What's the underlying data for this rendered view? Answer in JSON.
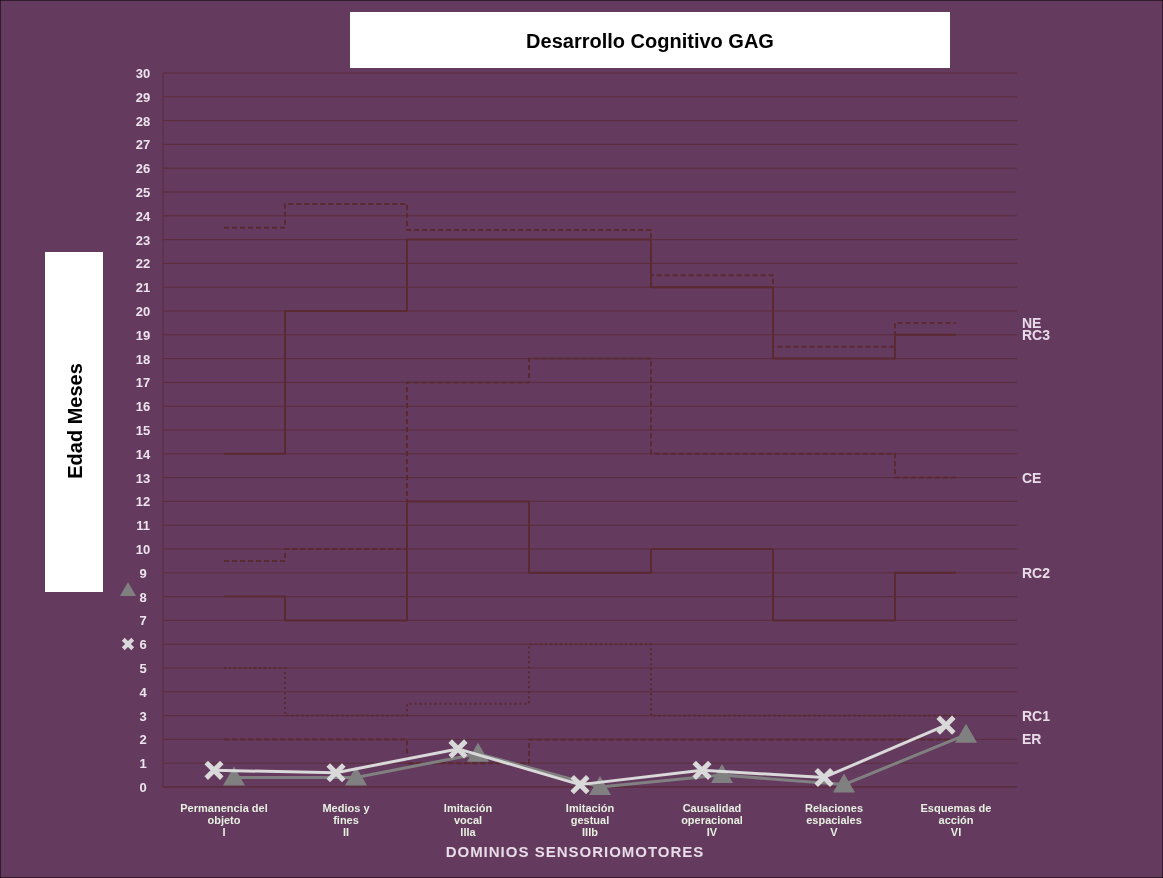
{
  "chart_data": {
    "type": "line",
    "title": "Desarrollo Cognitivo GAG",
    "ylabel": "Edad Meses",
    "xlabel": "DOMINIOS SENSORIOMOTORES",
    "categories": [
      "Permanencia del objeto I",
      "Medios y fines II",
      "Imitación vocal IIIa",
      "Imitación gestual IIIb",
      "Causalidad operacional IV",
      "Relaciones espaciales V",
      "Esquemas de acción VI"
    ],
    "ylim": [
      0,
      30
    ],
    "yticks": [
      0,
      1,
      2,
      3,
      4,
      5,
      6,
      7,
      8,
      9,
      10,
      11,
      12,
      13,
      14,
      15,
      16,
      17,
      18,
      19,
      20,
      21,
      22,
      23,
      24,
      25,
      26,
      27,
      28,
      29,
      30
    ],
    "grid": "y",
    "legend": false,
    "series": [
      {
        "type": "step",
        "name": "NE",
        "color": "#5a2a30",
        "line_style": "dashed",
        "values": [
          23.5,
          24.5,
          23.4,
          23.4,
          21.5,
          18.5,
          19.5
        ]
      },
      {
        "type": "step",
        "name": "RC3",
        "color": "#5a2a30",
        "line_style": "solid",
        "values": [
          14,
          20,
          23,
          23,
          21,
          18,
          19
        ]
      },
      {
        "type": "step",
        "name": "CE",
        "color": "#5a2a30",
        "line_style": "dashed",
        "values": [
          9.5,
          10,
          17,
          18,
          14,
          14,
          13
        ]
      },
      {
        "type": "step",
        "name": "RC2",
        "color": "#5a2a30",
        "line_style": "solid",
        "values": [
          8,
          7,
          12,
          9,
          10,
          7,
          9
        ]
      },
      {
        "type": "step",
        "name": "RC1",
        "color": "#5a2a30",
        "line_style": "dotted",
        "values": [
          5,
          3,
          3.5,
          6,
          3,
          3,
          3
        ]
      },
      {
        "type": "step",
        "name": "ER",
        "color": "#5a2a30",
        "line_style": "dashed",
        "values": [
          2,
          2,
          1,
          2,
          2,
          2,
          2
        ]
      },
      {
        "color": "#808080",
        "marker": "triangle",
        "values": [
          0.4,
          0.4,
          1.4,
          0,
          0.5,
          0.1,
          2.2
        ]
      },
      {
        "color": "#d9d9d9",
        "marker": "cross",
        "values": [
          0.7,
          0.6,
          1.6,
          0.1,
          0.7,
          0.4,
          2.6
        ]
      }
    ]
  }
}
